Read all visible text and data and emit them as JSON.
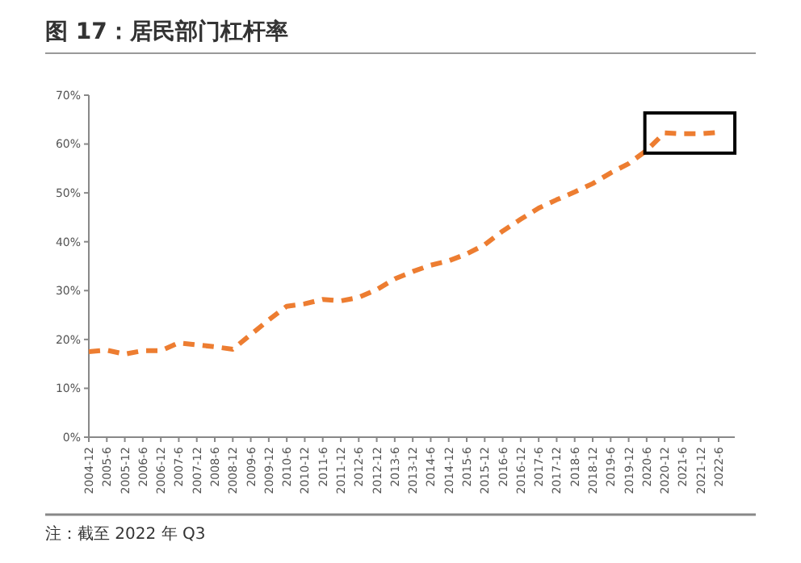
{
  "chart_data": {
    "type": "line",
    "title": "图 17：居民部门杠杆率",
    "categories": [
      "2004-12",
      "2005-6",
      "2005-12",
      "2006-6",
      "2006-12",
      "2007-6",
      "2007-12",
      "2008-6",
      "2008-12",
      "2009-6",
      "2009-12",
      "2010-6",
      "2010-12",
      "2011-6",
      "2011-12",
      "2012-6",
      "2012-12",
      "2013-6",
      "2013-12",
      "2014-6",
      "2014-12",
      "2015-6",
      "2015-12",
      "2016-6",
      "2016-12",
      "2017-6",
      "2017-12",
      "2018-6",
      "2018-12",
      "2019-6",
      "2019-12",
      "2020-6",
      "2020-12",
      "2021-6",
      "2021-12",
      "2022-6"
    ],
    "series": [
      {
        "color": "#ed7d31",
        "values": [
          17.5,
          17.8,
          17.0,
          17.7,
          17.7,
          19.3,
          18.9,
          18.5,
          18.0,
          21,
          24,
          26.8,
          27.3,
          28.2,
          27.9,
          28.6,
          30.2,
          32.4,
          33.9,
          35.2,
          36.1,
          37.5,
          39.4,
          42.2,
          44.6,
          46.9,
          48.6,
          50.2,
          51.9,
          54.1,
          56.0,
          58.7,
          62.3,
          62.1,
          62.1,
          62.4
        ]
      }
    ],
    "ylim": [
      0,
      70
    ],
    "yticks": [
      {
        "value": 0,
        "label": "0%"
      },
      {
        "value": 10,
        "label": "10%"
      },
      {
        "value": 20,
        "label": "20%"
      },
      {
        "value": 30,
        "label": "30%"
      },
      {
        "value": 40,
        "label": "40%"
      },
      {
        "value": 50,
        "label": "50%"
      },
      {
        "value": 60,
        "label": "60%"
      },
      {
        "value": 70,
        "label": "70%"
      }
    ],
    "line_style": "dashed",
    "marker": "none",
    "annotations": [
      "注：截至 2022 年 Q3"
    ]
  }
}
